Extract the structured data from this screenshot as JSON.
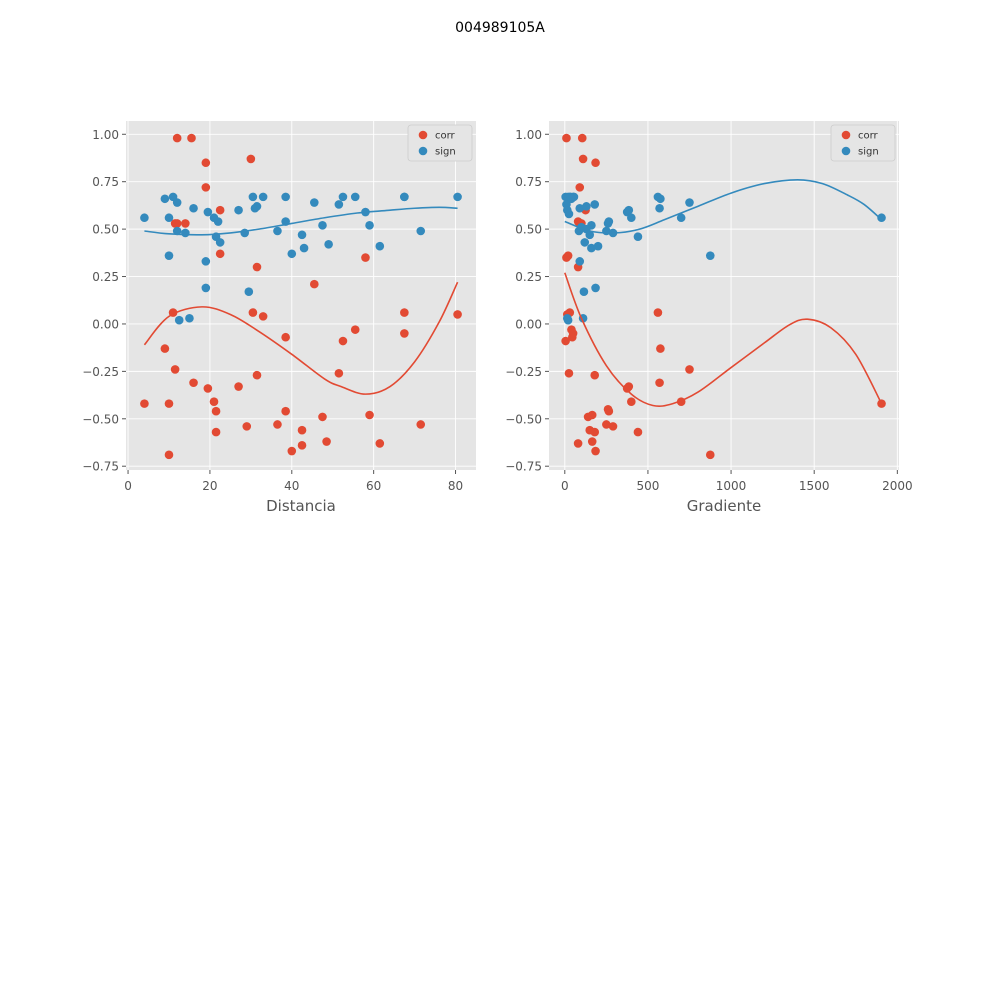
{
  "figure": {
    "suptitle": "004989105A"
  },
  "legend_labels": [
    "corr",
    "sign"
  ],
  "colors": {
    "corr": "#E24A33",
    "sign": "#348ABD",
    "panel_bg": "#E5E5E5",
    "grid": "#FFFFFF",
    "tick_text": "#555555"
  },
  "chart_data": [
    {
      "type": "scatter",
      "xlabel": "Distancia",
      "ylabel": "",
      "xlim": [
        -0.5,
        85
      ],
      "ylim": [
        -0.77,
        1.07
      ],
      "xticks": [
        0,
        20,
        40,
        60,
        80
      ],
      "yticks": [
        -0.75,
        -0.5,
        -0.25,
        0.0,
        0.25,
        0.5,
        0.75,
        1.0
      ],
      "xtick_labels": [
        "0",
        "20",
        "40",
        "60",
        "80"
      ],
      "ytick_labels": [
        "−0.75",
        "−0.50",
        "−0.25",
        "0.00",
        "0.25",
        "0.50",
        "0.75",
        "1.00"
      ],
      "grid": true,
      "legend_position": "top-right",
      "series": [
        {
          "name": "corr",
          "x": [
            12,
            15.5,
            19,
            19,
            30,
            11.5,
            14,
            12,
            22.5,
            22.5,
            31.5,
            45.5,
            58,
            11,
            30.5,
            33,
            55.5,
            38.5,
            52.5,
            9,
            11.5,
            51.5,
            31.5,
            16,
            27,
            19.5,
            21,
            21.5,
            4,
            10,
            38.5,
            47.5,
            59,
            36.5,
            71.5,
            29,
            21.5,
            42.5,
            48.5,
            42.5,
            40,
            61.5,
            10,
            67.5,
            67.5,
            80.5
          ],
          "y": [
            0.98,
            0.98,
            0.85,
            0.72,
            0.87,
            0.53,
            0.53,
            0.53,
            0.6,
            0.37,
            0.3,
            0.21,
            0.35,
            0.06,
            0.06,
            0.04,
            -0.03,
            -0.07,
            -0.09,
            -0.13,
            -0.24,
            -0.26,
            -0.27,
            -0.31,
            -0.33,
            -0.34,
            -0.41,
            -0.46,
            -0.42,
            -0.42,
            -0.46,
            -0.49,
            -0.48,
            -0.53,
            -0.53,
            -0.54,
            -0.57,
            -0.56,
            -0.62,
            -0.64,
            -0.67,
            -0.63,
            -0.69,
            0.06,
            -0.05,
            0.05
          ]
        },
        {
          "name": "sign",
          "x": [
            4,
            9,
            10,
            10,
            11,
            12,
            12,
            12.5,
            14,
            15,
            16,
            19,
            19.5,
            21,
            21.5,
            22,
            22.5,
            19,
            27,
            28.5,
            29.5,
            30.5,
            31,
            31.5,
            33,
            36.5,
            38.5,
            38.5,
            40,
            42.5,
            43,
            45.5,
            47.5,
            49,
            51.5,
            52.5,
            55.5,
            58,
            59,
            61.5,
            67.5,
            67.5,
            71.5,
            80.5
          ],
          "y": [
            0.56,
            0.66,
            0.36,
            0.56,
            0.67,
            0.64,
            0.49,
            0.02,
            0.48,
            0.03,
            0.61,
            0.33,
            0.59,
            0.56,
            0.46,
            0.54,
            0.43,
            0.19,
            0.6,
            0.48,
            0.17,
            0.67,
            0.61,
            0.62,
            0.67,
            0.49,
            0.67,
            0.54,
            0.37,
            0.47,
            0.4,
            0.64,
            0.52,
            0.42,
            0.63,
            0.67,
            0.67,
            0.59,
            0.52,
            0.41,
            0.67,
            0.67,
            0.49,
            0.67
          ]
        }
      ],
      "fits": [
        {
          "series": "corr",
          "x": [
            4,
            10,
            18,
            25,
            32,
            40,
            48,
            52,
            58,
            64,
            70,
            76,
            80.5
          ],
          "y": [
            -0.11,
            0.04,
            0.09,
            0.05,
            -0.04,
            -0.16,
            -0.29,
            -0.33,
            -0.37,
            -0.33,
            -0.2,
            0.01,
            0.22
          ]
        },
        {
          "series": "sign",
          "x": [
            4,
            10,
            18,
            25,
            32,
            40,
            48,
            56,
            64,
            70,
            76,
            80.5
          ],
          "y": [
            0.49,
            0.475,
            0.47,
            0.48,
            0.5,
            0.53,
            0.56,
            0.585,
            0.6,
            0.61,
            0.615,
            0.61
          ]
        }
      ]
    },
    {
      "type": "scatter",
      "xlabel": "Gradiente",
      "ylabel": "",
      "xlim": [
        -95,
        2010
      ],
      "ylim": [
        -0.77,
        1.07
      ],
      "xticks": [
        0,
        500,
        1000,
        1500,
        2000
      ],
      "yticks": [
        -0.75,
        -0.5,
        -0.25,
        0.0,
        0.25,
        0.5,
        0.75,
        1.0
      ],
      "xtick_labels": [
        "0",
        "500",
        "1000",
        "1500",
        "2000"
      ],
      "ytick_labels": [
        "−0.75",
        "−0.50",
        "−0.25",
        "0.00",
        "0.25",
        "0.50",
        "0.75",
        "1.00"
      ],
      "grid": true,
      "legend_position": "top-right",
      "series": [
        {
          "name": "corr",
          "x": [
            10,
            105,
            110,
            185,
            90,
            80,
            90,
            100,
            125,
            80,
            20,
            10,
            560,
            15,
            30,
            40,
            45,
            50,
            575,
            5,
            750,
            25,
            180,
            570,
            385,
            375,
            400,
            700,
            265,
            260,
            165,
            140,
            290,
            250,
            180,
            150,
            440,
            165,
            80,
            185,
            875,
            1905
          ],
          "y": [
            0.98,
            0.98,
            0.87,
            0.85,
            0.72,
            0.54,
            0.53,
            0.53,
            0.6,
            0.3,
            0.36,
            0.35,
            0.06,
            0.05,
            0.06,
            -0.03,
            -0.07,
            -0.05,
            -0.13,
            -0.09,
            -0.24,
            -0.26,
            -0.27,
            -0.31,
            -0.33,
            -0.34,
            -0.41,
            -0.41,
            -0.46,
            -0.45,
            -0.48,
            -0.49,
            -0.54,
            -0.53,
            -0.57,
            -0.56,
            -0.57,
            -0.62,
            -0.63,
            -0.67,
            -0.69,
            -0.42
          ]
        },
        {
          "name": "sign",
          "x": [
            5,
            10,
            20,
            30,
            40,
            50,
            55,
            15,
            25,
            35,
            90,
            130,
            160,
            180,
            100,
            120,
            150,
            200,
            160,
            130,
            85,
            90,
            265,
            260,
            290,
            250,
            375,
            385,
            400,
            440,
            560,
            575,
            570,
            700,
            750,
            875,
            1905,
            115,
            110,
            185,
            15,
            20
          ],
          "y": [
            0.67,
            0.63,
            0.67,
            0.67,
            0.66,
            0.67,
            0.67,
            0.6,
            0.58,
            0.67,
            0.61,
            0.62,
            0.52,
            0.63,
            0.51,
            0.43,
            0.47,
            0.41,
            0.4,
            0.5,
            0.49,
            0.33,
            0.54,
            0.53,
            0.48,
            0.49,
            0.59,
            0.6,
            0.56,
            0.46,
            0.67,
            0.66,
            0.61,
            0.56,
            0.64,
            0.36,
            0.56,
            0.17,
            0.03,
            0.19,
            0.03,
            0.02
          ]
        }
      ],
      "fits": [
        {
          "series": "corr",
          "x": [
            0,
            100,
            250,
            400,
            530,
            650,
            800,
            1000,
            1200,
            1350,
            1460,
            1600,
            1750,
            1905
          ],
          "y": [
            0.27,
            0.03,
            -0.22,
            -0.37,
            -0.43,
            -0.42,
            -0.36,
            -0.23,
            -0.1,
            -0.005,
            0.025,
            -0.02,
            -0.16,
            -0.42
          ]
        },
        {
          "series": "sign",
          "x": [
            0,
            150,
            300,
            450,
            600,
            800,
            1000,
            1200,
            1400,
            1550,
            1700,
            1800,
            1905
          ],
          "y": [
            0.54,
            0.49,
            0.48,
            0.5,
            0.55,
            0.62,
            0.69,
            0.74,
            0.76,
            0.74,
            0.68,
            0.63,
            0.55
          ]
        }
      ]
    }
  ]
}
